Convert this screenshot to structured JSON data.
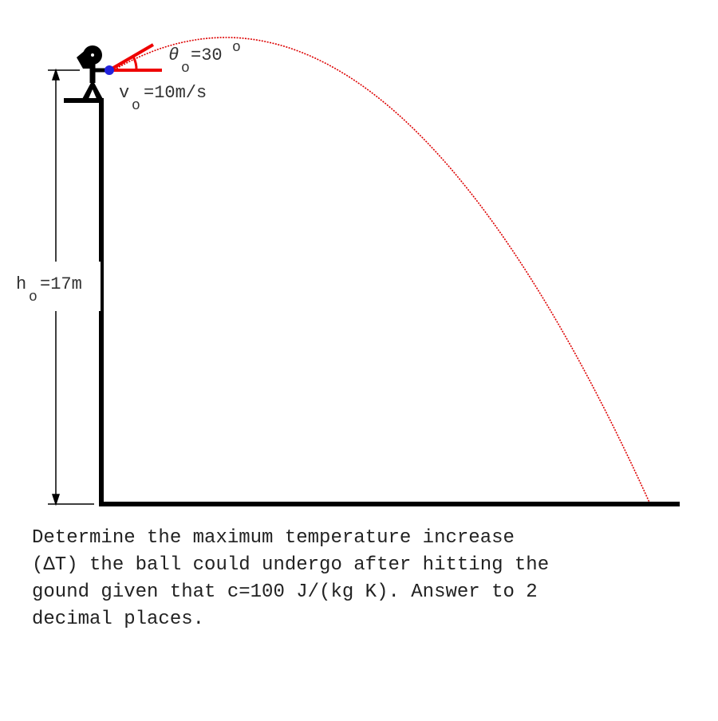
{
  "labels": {
    "angle": {
      "symbol": "θ",
      "subscript": "o",
      "value": "=30",
      "superscript": "o"
    },
    "velocity": {
      "symbol": "v",
      "subscript": "o",
      "value": "=10m/s"
    },
    "height": {
      "symbol": "h",
      "subscript": "o",
      "value": "=17m"
    }
  },
  "question": {
    "lines": [
      "Determine the maximum temperature increase",
      "(ΔT) the ball could undergo after hitting the",
      "gound given that c=100 J/(kg K). Answer to 2",
      "decimal places."
    ]
  }
}
